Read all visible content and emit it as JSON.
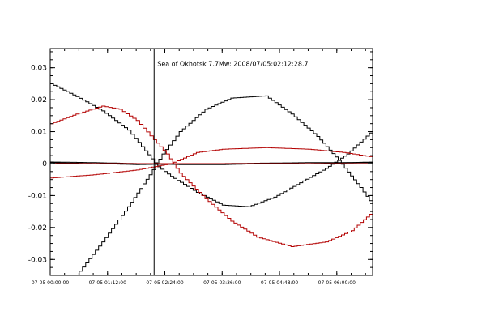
{
  "chart_data": {
    "type": "line",
    "title": "",
    "xlabel": "",
    "ylabel": "",
    "xlim": [
      0,
      3.75
    ],
    "ylim": [
      -0.035,
      0.036
    ],
    "grid": false,
    "y_ticks": [
      {
        "value": 0.03,
        "label": "0.03"
      },
      {
        "value": 0.02,
        "label": "0.02"
      },
      {
        "value": 0.01,
        "label": "0.01"
      },
      {
        "value": 0,
        "label": "0"
      },
      {
        "value": -0.01,
        "label": "-0.01"
      },
      {
        "value": -0.02,
        "label": "-0.02"
      },
      {
        "value": -0.03,
        "label": "-0.03"
      }
    ],
    "x_ticks": [
      {
        "value": 0,
        "label": "07-05 00:00:00"
      },
      {
        "value": 0.6667,
        "label": "07-05 01:12:00"
      },
      {
        "value": 1.3333,
        "label": "07-05 02:24:00"
      },
      {
        "value": 2.0,
        "label": "07-05 03:36:00"
      },
      {
        "value": 2.6667,
        "label": "07-05 04:48:00"
      },
      {
        "value": 3.3333,
        "label": "07-05 06:00:00"
      }
    ],
    "annotations": [
      {
        "text": "Sea of Okhotsk 7.7Mw: 2008/07/05:02:12:28.7",
        "x": 1.2083,
        "y": 0.0305,
        "event_line": true
      }
    ],
    "series": [
      {
        "color": "#000000",
        "points": [
          [
            0,
            0.025
          ],
          [
            0.3,
            0.021
          ],
          [
            0.6,
            0.0165
          ],
          [
            0.9,
            0.0105
          ],
          [
            1.1,
            0.004
          ],
          [
            1.25,
            -0.001
          ],
          [
            1.4,
            -0.004
          ],
          [
            1.7,
            -0.009
          ],
          [
            2.0,
            -0.013
          ],
          [
            2.3,
            -0.0135
          ],
          [
            2.6,
            -0.0105
          ],
          [
            2.9,
            -0.006
          ],
          [
            3.2,
            -0.0015
          ],
          [
            3.45,
            0.003
          ],
          [
            3.75,
            0.0105
          ]
        ]
      },
      {
        "color": "#000000",
        "points": [
          [
            0,
            0.0005
          ],
          [
            0.5,
            0.0003
          ],
          [
            1.0,
            0.0
          ],
          [
            1.5,
            -0.0003
          ],
          [
            2.0,
            -0.0003
          ],
          [
            2.5,
            0.0
          ],
          [
            3.0,
            0.0
          ],
          [
            3.75,
            0.0005
          ]
        ]
      },
      {
        "color": "#000000",
        "points": [
          [
            0.3,
            -0.035
          ],
          [
            0.6,
            -0.0245
          ],
          [
            0.9,
            -0.0135
          ],
          [
            1.15,
            -0.0035
          ],
          [
            1.3,
            0.003
          ],
          [
            1.5,
            0.01
          ],
          [
            1.8,
            0.017
          ],
          [
            2.1,
            0.0205
          ],
          [
            2.5,
            0.0212
          ],
          [
            2.8,
            0.0155
          ],
          [
            3.1,
            0.0085
          ],
          [
            3.35,
            0.001
          ],
          [
            3.6,
            -0.0075
          ],
          [
            3.75,
            -0.013
          ]
        ]
      },
      {
        "color": "#000000",
        "points": [
          [
            0,
            0.0003
          ],
          [
            1.0,
            -0.0003
          ],
          [
            2.0,
            0.0
          ],
          [
            3.0,
            0.0003
          ],
          [
            3.75,
            0.0003
          ]
        ]
      },
      {
        "color": "#b30000",
        "points": [
          [
            0,
            0.0125
          ],
          [
            0.3,
            0.0155
          ],
          [
            0.6,
            0.018
          ],
          [
            0.8,
            0.017
          ],
          [
            1.0,
            0.0135
          ],
          [
            1.2,
            0.0075
          ],
          [
            1.35,
            0.003
          ],
          [
            1.5,
            -0.003
          ],
          [
            1.8,
            -0.011
          ],
          [
            2.1,
            -0.018
          ],
          [
            2.4,
            -0.023
          ],
          [
            2.8,
            -0.026
          ],
          [
            3.2,
            -0.0245
          ],
          [
            3.5,
            -0.021
          ],
          [
            3.75,
            -0.015
          ]
        ]
      },
      {
        "color": "#b30000",
        "points": [
          [
            0,
            -0.0045
          ],
          [
            0.5,
            -0.0035
          ],
          [
            1.0,
            -0.002
          ],
          [
            1.4,
            0.0
          ],
          [
            1.7,
            0.0035
          ],
          [
            2.0,
            0.0045
          ],
          [
            2.5,
            0.005
          ],
          [
            3.0,
            0.0045
          ],
          [
            3.4,
            0.0035
          ],
          [
            3.75,
            0.002
          ]
        ]
      },
      {
        "color": "#b30000",
        "points": [
          [
            0,
            0.0
          ],
          [
            1.2,
            0.0
          ],
          [
            3.75,
            0.0
          ]
        ]
      }
    ]
  }
}
